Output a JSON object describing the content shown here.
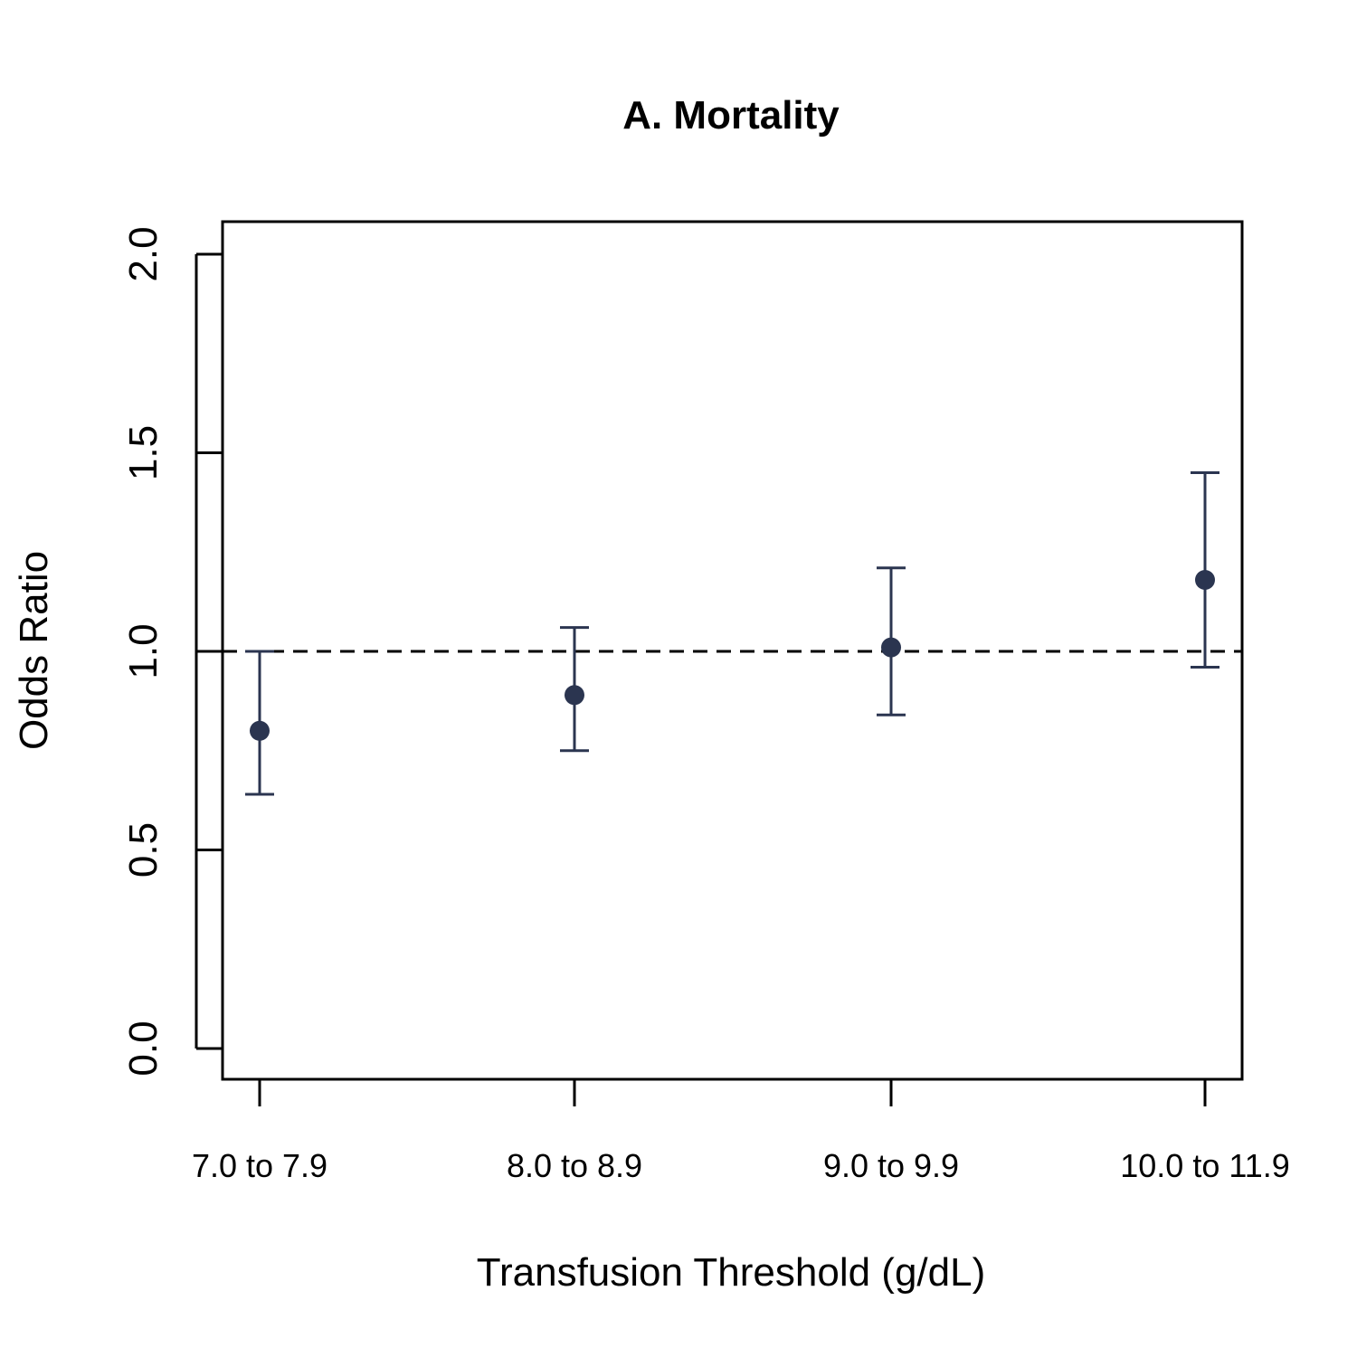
{
  "chart_data": {
    "type": "scatter",
    "title": "A. Mortality",
    "xlabel": "Transfusion Threshold (g/dL)",
    "ylabel": "Odds Ratio",
    "categories": [
      "7.0 to 7.9",
      "8.0 to 8.9",
      "9.0 to 9.9",
      "10.0 to 11.9"
    ],
    "series": [
      {
        "values": [
          0.8,
          0.89,
          1.01,
          1.18
        ],
        "lower": [
          0.64,
          0.75,
          0.84,
          0.96
        ],
        "upper": [
          1.0,
          1.06,
          1.21,
          1.45
        ],
        "color": "#2b3550"
      }
    ],
    "reference_line": {
      "y": 1.0,
      "style": "dashed"
    },
    "ylim": [
      0,
      2
    ],
    "yticks": [
      "0.0",
      "0.5",
      "1.0",
      "1.5",
      "2.0"
    ],
    "grid": false,
    "legend": "none"
  }
}
